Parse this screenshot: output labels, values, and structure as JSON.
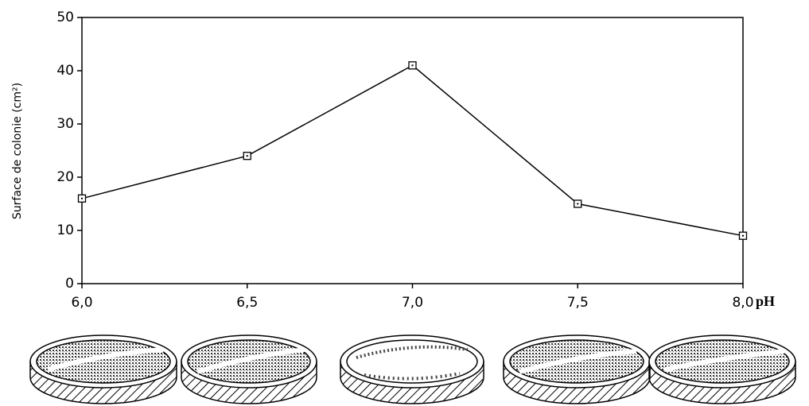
{
  "chart_data": {
    "type": "line",
    "x_label": "pH",
    "y_label": "Surface de colonie (cm²)",
    "x": [
      6.0,
      6.5,
      7.0,
      7.5,
      8.0
    ],
    "series": [
      {
        "name": null,
        "color": "#000000",
        "values": [
          16,
          24,
          41,
          15,
          9
        ]
      }
    ],
    "xlim": [
      6,
      8
    ],
    "xticks": [
      {
        "value": 6,
        "label": "6,0"
      },
      {
        "value": 6.5,
        "label": "6,5"
      },
      {
        "value": 7,
        "label": "7,0"
      },
      {
        "value": 7.5,
        "label": "7,5"
      },
      {
        "value": 8,
        "label": "8,0"
      }
    ],
    "ylim": [
      0,
      50
    ],
    "yticks": [
      0,
      10,
      20,
      30,
      40,
      50
    ],
    "grid": false
  }
}
